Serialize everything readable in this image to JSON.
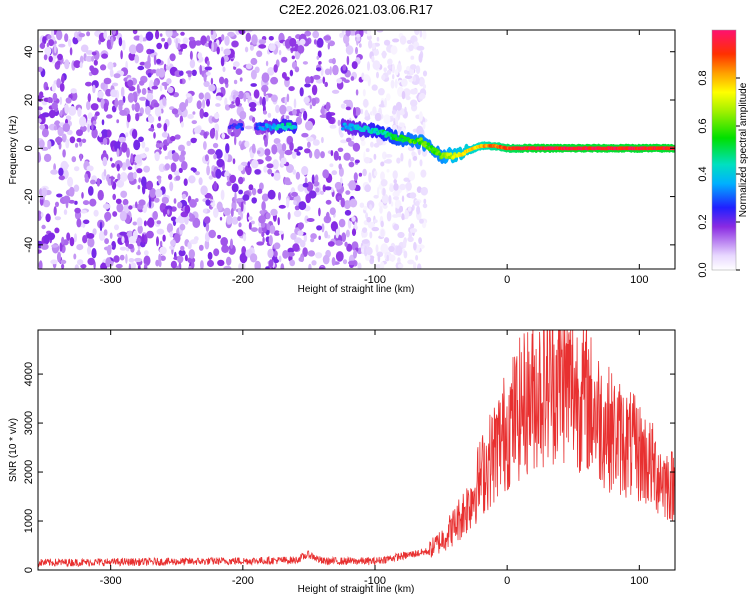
{
  "title": "C2E2.2026.021.03.06.R17",
  "chart_data": [
    {
      "type": "heatmap",
      "xlabel": "Height of straight line (km)",
      "ylabel": "Frequency (Hz)",
      "xlim": [
        -355,
        127
      ],
      "ylim": [
        -50,
        49
      ],
      "xticks": [
        -300,
        -200,
        -100,
        0,
        100
      ],
      "xtick_labels": [
        "-300",
        "-200",
        "-100",
        "0",
        "100"
      ],
      "yticks": [
        -40,
        -20,
        0,
        20,
        40
      ],
      "ytick_labels": [
        "-40",
        "-20",
        "0",
        "20",
        "40"
      ],
      "colorbar": {
        "label": "Normalized spectral amplitude",
        "range": [
          0,
          1
        ],
        "ticks": [
          0,
          0.2,
          0.4,
          0.6,
          0.8
        ],
        "tick_labels": [
          "0.0",
          "0.2",
          "0.4",
          "0.6",
          "0.8"
        ]
      },
      "noise_region_x": [
        -355,
        -62
      ],
      "signal_track": [
        {
          "x": -210,
          "y": 9,
          "amp": 0.25
        },
        {
          "x": -185,
          "y": 9,
          "amp": 0.3
        },
        {
          "x": -170,
          "y": 9,
          "amp": 0.45
        },
        {
          "x": -120,
          "y": 9,
          "amp": 0.35
        },
        {
          "x": -100,
          "y": 7,
          "amp": 0.45
        },
        {
          "x": -80,
          "y": 4,
          "amp": 0.55
        },
        {
          "x": -65,
          "y": 3,
          "amp": 0.6
        },
        {
          "x": -50,
          "y": -3,
          "amp": 0.6
        },
        {
          "x": -40,
          "y": -3,
          "amp": 0.7
        },
        {
          "x": -30,
          "y": -1,
          "amp": 0.75
        },
        {
          "x": -20,
          "y": 1,
          "amp": 0.8
        },
        {
          "x": -10,
          "y": 1,
          "amp": 0.85
        },
        {
          "x": 0,
          "y": 0,
          "amp": 0.9
        },
        {
          "x": 20,
          "y": 0,
          "amp": 0.95
        },
        {
          "x": 50,
          "y": 0,
          "amp": 0.95
        },
        {
          "x": 80,
          "y": 0,
          "amp": 0.95
        },
        {
          "x": 100,
          "y": 0,
          "amp": 0.95
        },
        {
          "x": 127,
          "y": 0,
          "amp": 0.95
        }
      ]
    },
    {
      "type": "line",
      "xlabel": "Height of straight line (km)",
      "ylabel": "SNR (10 * v/v)",
      "xlim": [
        -355,
        127
      ],
      "ylim": [
        0,
        4900
      ],
      "xticks": [
        -300,
        -200,
        -100,
        0,
        100
      ],
      "xtick_labels": [
        "-300",
        "-200",
        "-100",
        "0",
        "100"
      ],
      "yticks": [
        0,
        1000,
        2000,
        3000,
        4000
      ],
      "ytick_labels": [
        "0",
        "1000",
        "2000",
        "3000",
        "4000"
      ],
      "series": [
        {
          "name": "SNR",
          "color": "#e83030",
          "envelope_x": [
            -355,
            -250,
            -160,
            -150,
            -140,
            -100,
            -80,
            -60,
            -50,
            -40,
            -30,
            -20,
            -10,
            0,
            10,
            20,
            30,
            40,
            50,
            60,
            70,
            80,
            90,
            100,
            110,
            120,
            127
          ],
          "envelope_y": [
            150,
            170,
            200,
            320,
            180,
            180,
            280,
            380,
            600,
            900,
            1300,
            1900,
            2400,
            2900,
            3300,
            3600,
            3800,
            3900,
            3700,
            3500,
            3100,
            2800,
            2600,
            2400,
            2100,
            1800,
            1700
          ]
        }
      ]
    }
  ]
}
